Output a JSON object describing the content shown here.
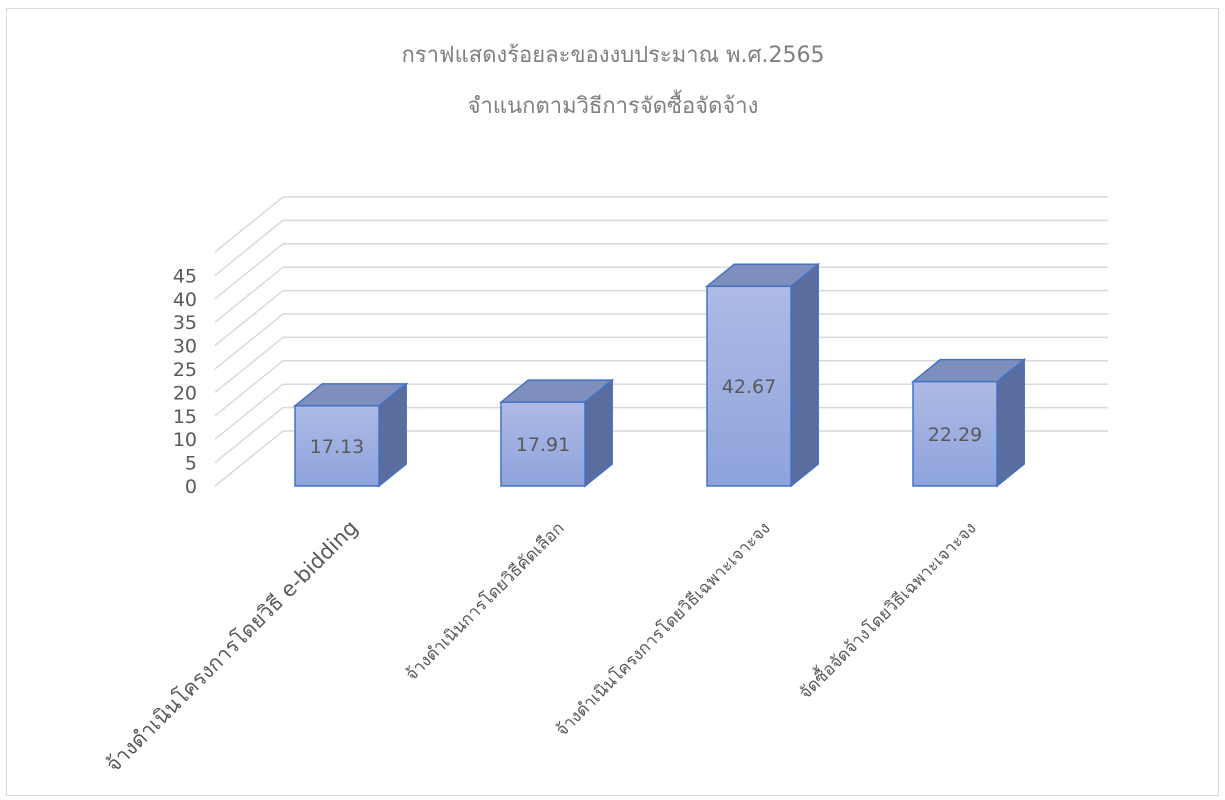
{
  "chart_data": {
    "type": "bar",
    "title": "กราฟแสดงร้อยละของงบประมาณ พ.ศ.2565",
    "subtitle": "จำแนกตามวิธีการจัดซื้อจัดจ้าง",
    "categories": [
      "จ้างดำเนินโครงการโดยวิธี e-bidding",
      "จ้างดำเนินการโดยวิธีคัดเลือก",
      "จ้างดำเนินโครงการโดยวิธีเฉพาะเจาะจง",
      "จัดซื้อจัดจ้างโดยวิธีเฉพาะเจาะจง"
    ],
    "values": [
      17.13,
      17.91,
      42.67,
      22.29
    ],
    "value_labels": [
      "17.13",
      "17.91",
      "42.67",
      "22.29"
    ],
    "y_ticks": [
      "0",
      "5",
      "10",
      "15",
      "20",
      "25",
      "30",
      "35",
      "40",
      "45"
    ],
    "ylim": [
      0,
      45
    ],
    "grid": true,
    "style_3d": true,
    "colors": {
      "bar_front_top": "#aebae6",
      "bar_front_bottom": "#8ea3dc",
      "bar_top": "#7f8fbd",
      "bar_side": "#5b6c9e",
      "bar_edge": "#4472c4"
    }
  }
}
